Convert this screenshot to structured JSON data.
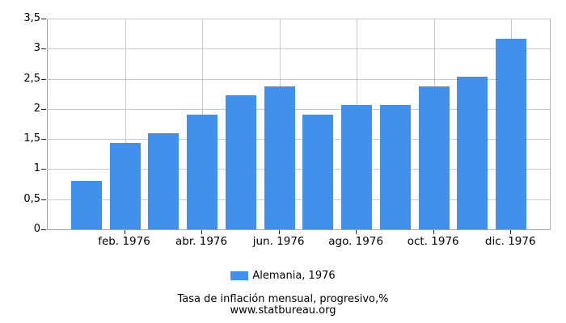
{
  "chart_data": {
    "type": "bar",
    "title": "Tasa de inflación mensual, progresivo,%",
    "subtitle": "www.statbureau.org",
    "legend_label": "Alemania, 1976",
    "values": [
      0.8,
      1.43,
      1.59,
      1.9,
      2.22,
      2.38,
      1.9,
      2.06,
      2.06,
      2.38,
      2.54,
      3.17
    ],
    "ylim": [
      0,
      3.5
    ],
    "y_ticks": {
      "labels": [
        "0",
        "0,5",
        "1",
        "1,5",
        "2",
        "2,5",
        "3",
        "3,5"
      ],
      "values": [
        0,
        0.5,
        1,
        1.5,
        2,
        2.5,
        3,
        3.5
      ]
    },
    "x_ticks": {
      "labels": [
        "feb. 1976",
        "abr. 1976",
        "jun. 1976",
        "ago. 1976",
        "oct. 1976",
        "dic. 1976"
      ],
      "month_indices": [
        1,
        3,
        5,
        7,
        9,
        11
      ]
    },
    "bar_color": "#4190ec",
    "grid": true,
    "legend_position": "bottom"
  }
}
